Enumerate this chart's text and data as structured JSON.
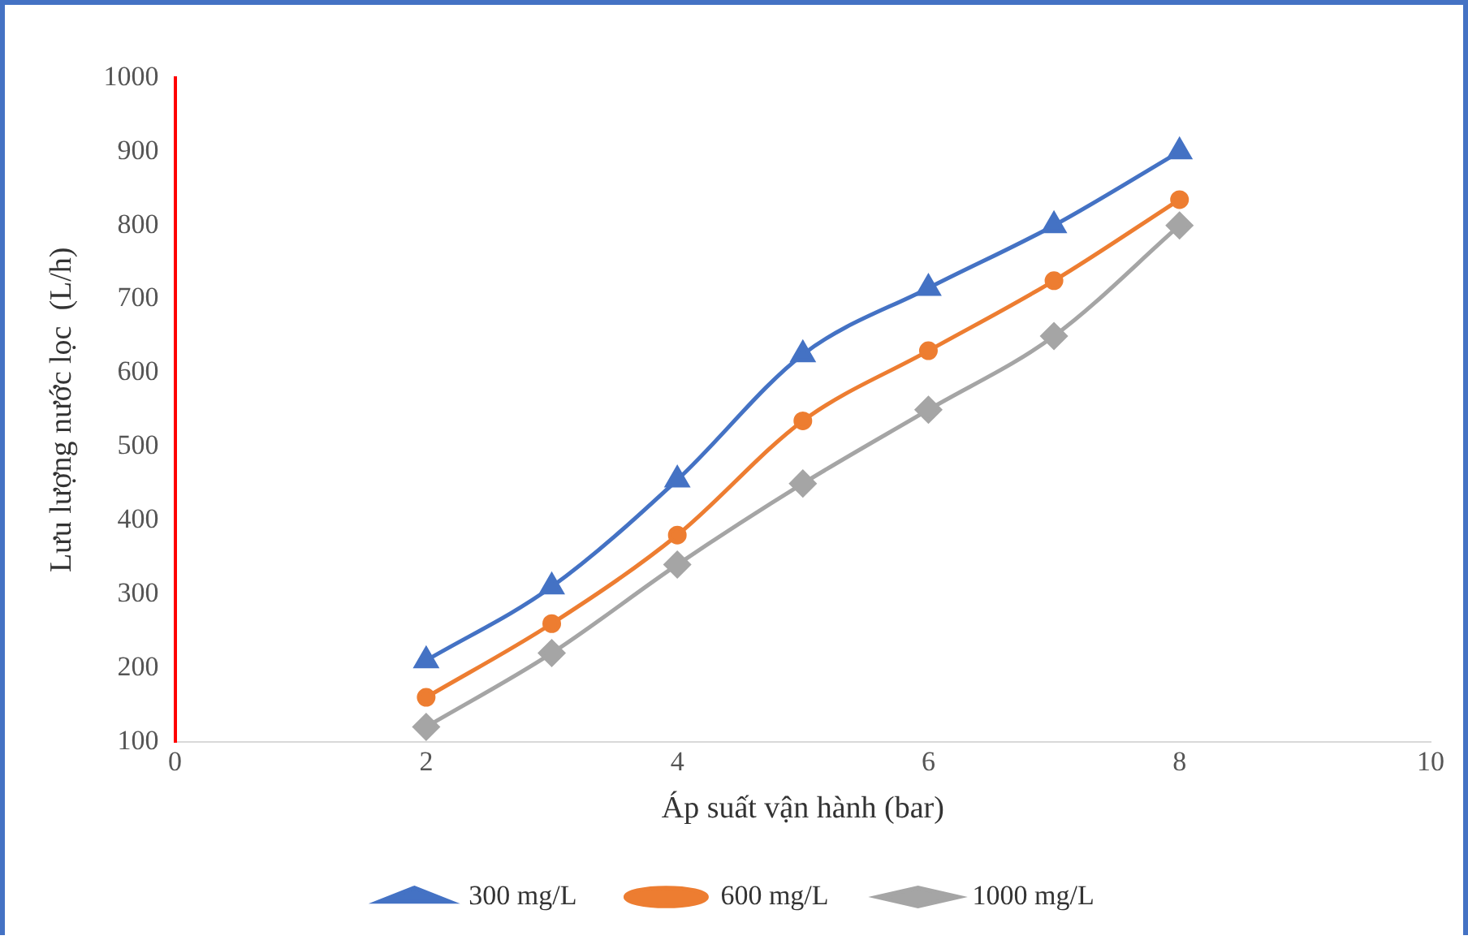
{
  "chart_data": {
    "type": "line",
    "xlabel": "Áp suất vận hành (bar)",
    "ylabel": "Lưu lượng nước lọc  (L/h)",
    "x": [
      2,
      3,
      4,
      5,
      6,
      7,
      8
    ],
    "series": [
      {
        "name": "300 mg/L",
        "color": "#4472c4",
        "marker": "triangle",
        "values": [
          210,
          310,
          455,
          625,
          715,
          800,
          900
        ]
      },
      {
        "name": "600 mg/L",
        "color": "#ed7d31",
        "marker": "circle",
        "values": [
          160,
          260,
          380,
          535,
          630,
          725,
          835
        ]
      },
      {
        "name": "1000 mg/L",
        "color": "#a5a5a5",
        "marker": "diamond",
        "values": [
          120,
          220,
          340,
          450,
          550,
          650,
          800
        ]
      }
    ],
    "xlim": [
      0,
      10
    ],
    "xticks": [
      0,
      2,
      4,
      6,
      8,
      10
    ],
    "ylim": [
      100,
      1000
    ],
    "yticks": [
      100,
      200,
      300,
      400,
      500,
      600,
      700,
      800,
      900,
      1000
    ],
    "grid": false,
    "legend": "bottom"
  }
}
